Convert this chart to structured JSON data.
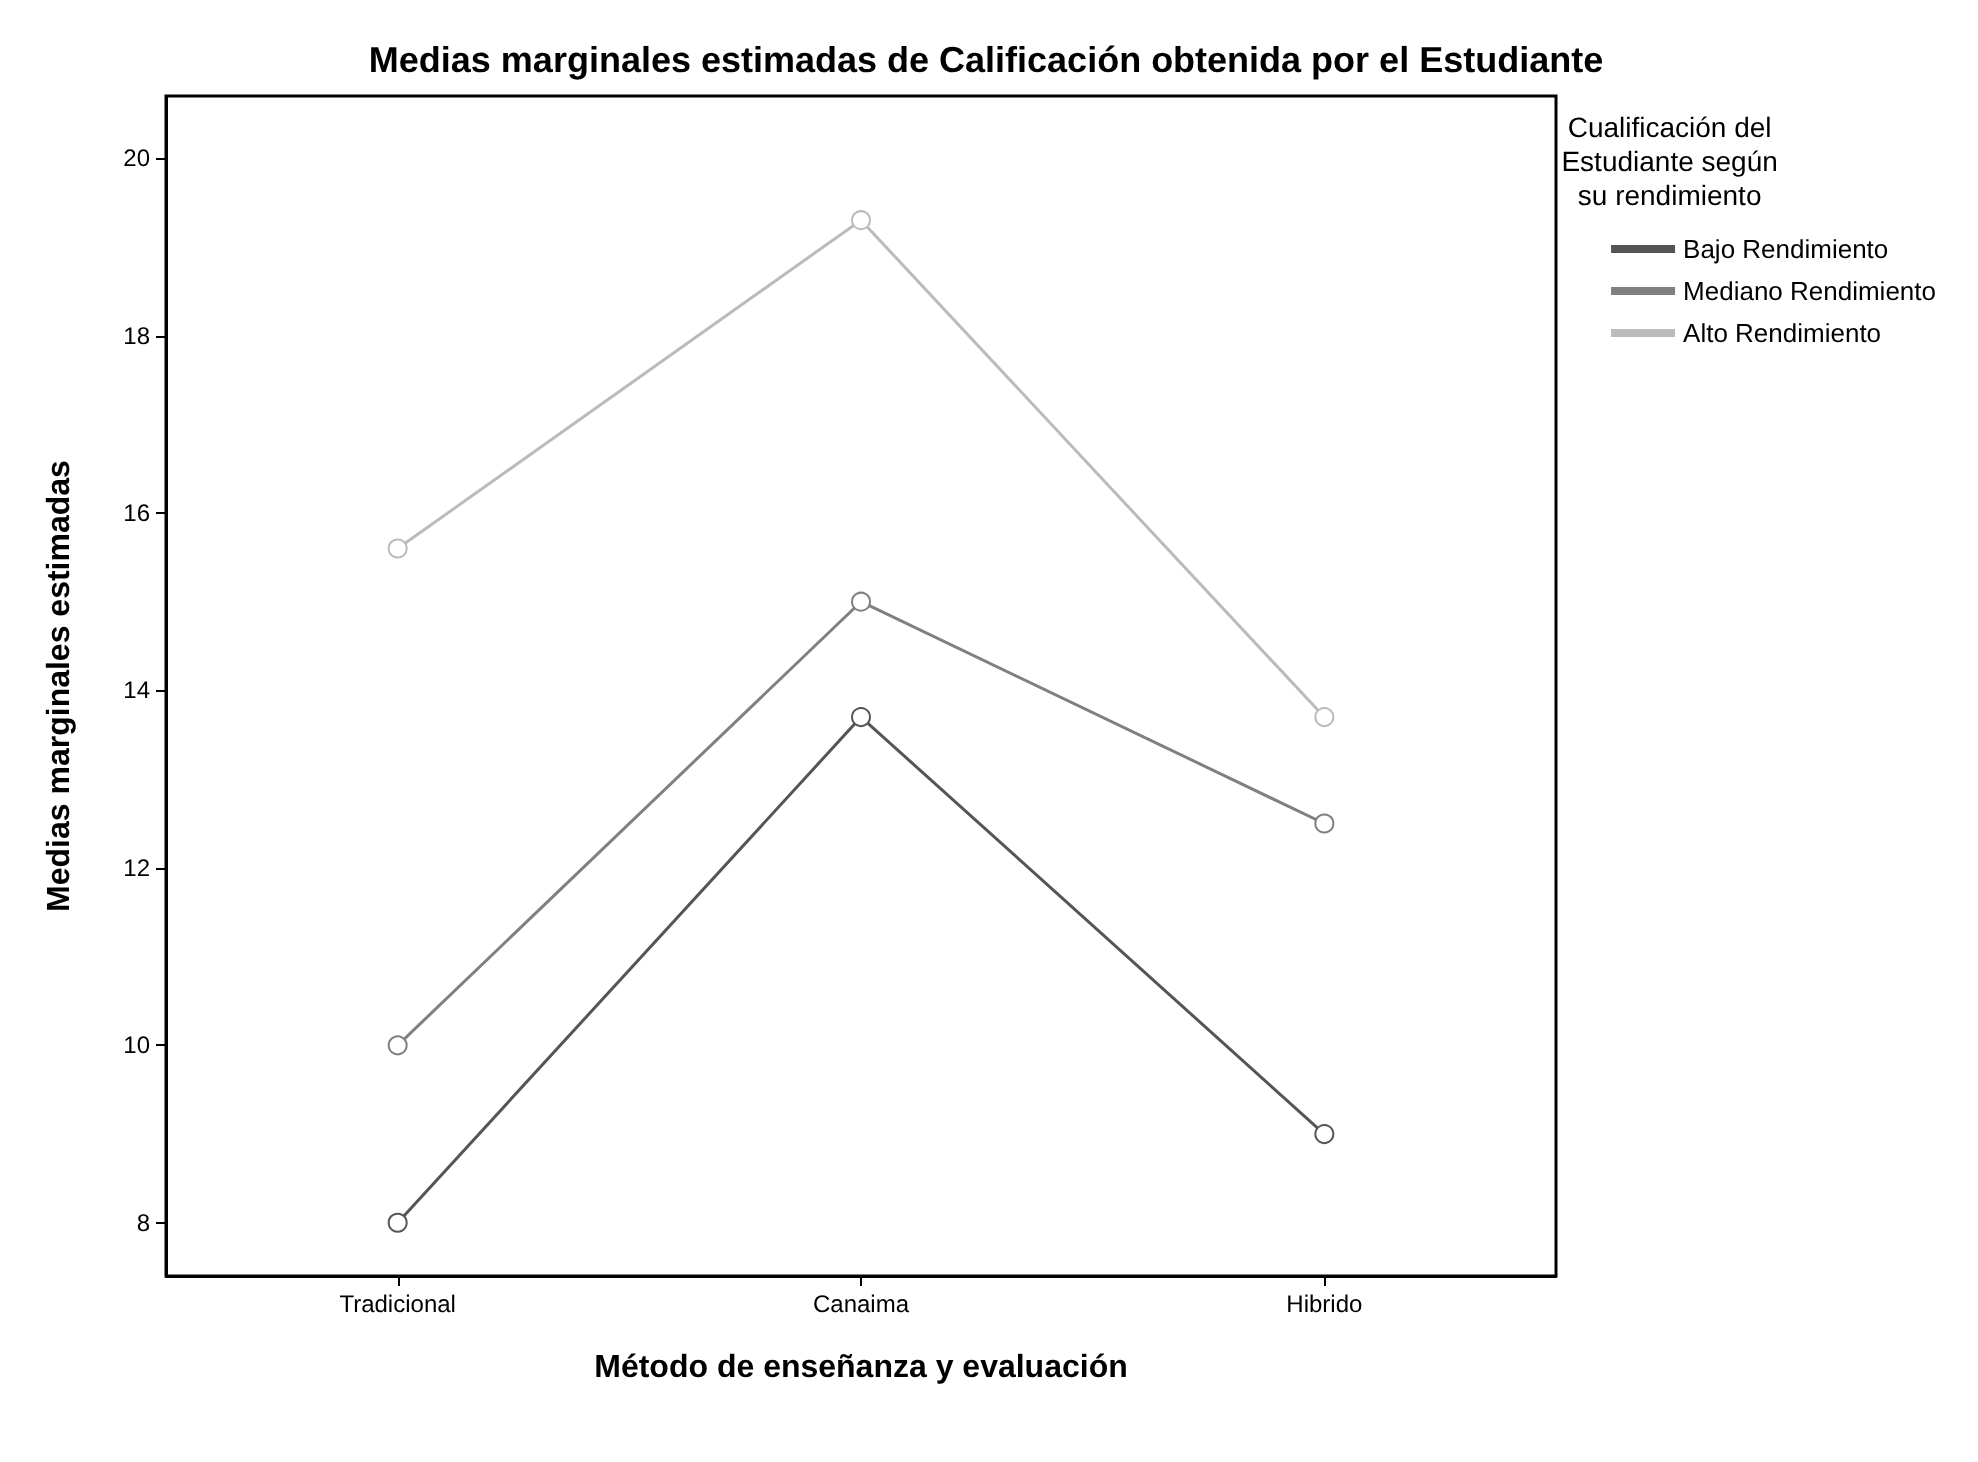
{
  "chart_data": {
    "type": "line",
    "title": "Medias marginales estimadas de Calificación obtenida por el Estudiante",
    "xlabel": "Método de enseñanza y evaluación",
    "ylabel": "Medias marginales estimadas",
    "legend_title": "Cualificación del\nEstudiante según\nsu rendimiento",
    "categories": [
      "Tradicional",
      "Canaima",
      "Hibrido"
    ],
    "series": [
      {
        "name": "Bajo Rendimiento",
        "color": "#555555",
        "values": [
          8.0,
          13.7,
          9.0
        ]
      },
      {
        "name": "Mediano Rendimiento",
        "color": "#808080",
        "values": [
          10.0,
          15.0,
          12.5
        ]
      },
      {
        "name": "Alto Rendimiento",
        "color": "#bbbbbb",
        "values": [
          15.6,
          19.3,
          13.7
        ]
      }
    ],
    "ylim": [
      7.4,
      20.7
    ],
    "yticks": [
      8,
      10,
      12,
      14,
      16,
      18,
      20
    ],
    "legend": "right",
    "marker": "circle",
    "line_style": "solid",
    "grid": false
  }
}
